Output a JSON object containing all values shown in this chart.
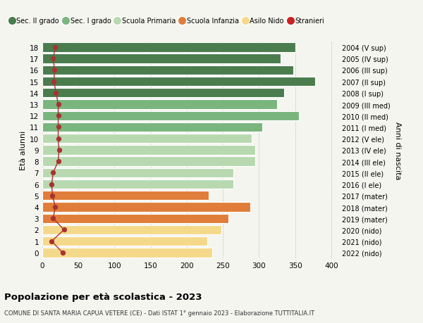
{
  "ages": [
    18,
    17,
    16,
    15,
    14,
    13,
    12,
    11,
    10,
    9,
    8,
    7,
    6,
    5,
    4,
    3,
    2,
    1,
    0
  ],
  "right_labels": [
    "2004 (V sup)",
    "2005 (IV sup)",
    "2006 (III sup)",
    "2007 (II sup)",
    "2008 (I sup)",
    "2009 (III med)",
    "2010 (II med)",
    "2011 (I med)",
    "2012 (V ele)",
    "2013 (IV ele)",
    "2014 (III ele)",
    "2015 (II ele)",
    "2016 (I ele)",
    "2017 (mater)",
    "2018 (mater)",
    "2019 (mater)",
    "2020 (nido)",
    "2021 (nido)",
    "2022 (nido)"
  ],
  "bar_values": [
    350,
    330,
    348,
    378,
    335,
    325,
    355,
    305,
    290,
    295,
    295,
    265,
    265,
    230,
    288,
    258,
    248,
    228,
    235
  ],
  "stranieri_values": [
    18,
    15,
    17,
    16,
    19,
    22,
    22,
    22,
    22,
    23,
    22,
    15,
    13,
    14,
    18,
    15,
    30,
    13,
    28
  ],
  "bar_colors": [
    "#4a7c4e",
    "#4a7c4e",
    "#4a7c4e",
    "#4a7c4e",
    "#4a7c4e",
    "#7ab57e",
    "#7ab57e",
    "#7ab57e",
    "#b8d9b0",
    "#b8d9b0",
    "#b8d9b0",
    "#b8d9b0",
    "#b8d9b0",
    "#e07d3a",
    "#e07d3a",
    "#e07d3a",
    "#f5d98b",
    "#f5d98b",
    "#f5d98b"
  ],
  "stranieri_color": "#a83232",
  "bg_color": "#f5f5f0",
  "title": "Popolazione per età scolastica - 2023",
  "subtitle": "COMUNE DI SANTA MARIA CAPUA VETERE (CE) - Dati ISTAT 1° gennaio 2023 - Elaborazione TUTTITALIA.IT",
  "ylabel_left": "Età alunni",
  "ylabel_right": "Anni di nascita",
  "xlim": [
    0,
    410
  ],
  "xticks": [
    0,
    50,
    100,
    150,
    200,
    250,
    300,
    350,
    400
  ],
  "legend_labels": [
    "Sec. II grado",
    "Sec. I grado",
    "Scuola Primaria",
    "Scuola Infanzia",
    "Asilo Nido",
    "Stranieri"
  ],
  "legend_colors": [
    "#4a7c4e",
    "#7ab57e",
    "#b8d9b0",
    "#e07d3a",
    "#f5d98b",
    "#cc2222"
  ]
}
